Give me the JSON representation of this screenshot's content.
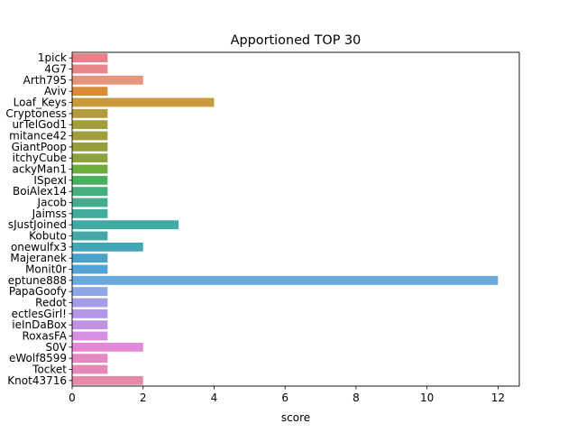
{
  "chart_data": {
    "type": "bar",
    "orientation": "horizontal",
    "title": "Apportioned TOP 30",
    "xlabel": "score",
    "ylabel": "",
    "xlim": [
      0,
      12.6
    ],
    "xticks": [
      0,
      2,
      4,
      6,
      8,
      10,
      12
    ],
    "grid": false,
    "categories": [
      "1pick",
      "4G7",
      "Arth795",
      "Aviv",
      "Loaf_Keys",
      "Cryptoness",
      "urTelGod1",
      "mitance42",
      "GiantPoop",
      "itchyCube",
      "ackyMan1",
      "ISpexI",
      "BoiAlex14",
      "Jacob",
      "Jaimss",
      "sJustJoined",
      "Kobuto",
      "onewulfx3",
      "Majeranek",
      "Monit0r",
      "eptune888",
      "PapaGoofy",
      "Redot",
      "ectlesGirl!",
      "ieInDaBox",
      "RoxasFA",
      "S0V",
      "eWolf8599",
      "Tocket",
      "Knot43716"
    ],
    "values": [
      1,
      1,
      2,
      1,
      4,
      1,
      1,
      1,
      1,
      1,
      1,
      1,
      1,
      1,
      1,
      3,
      1,
      2,
      1,
      1,
      12,
      1,
      1,
      1,
      1,
      1,
      2,
      1,
      1,
      2
    ],
    "colors": [
      "#e8808a",
      "#e8868c",
      "#e4967c",
      "#d98c3a",
      "#c99a3c",
      "#b49c3c",
      "#a39e3c",
      "#a09e3c",
      "#989e3c",
      "#8ea43c",
      "#6cae3c",
      "#4aaf5e",
      "#45ae7c",
      "#44ad90",
      "#42ac9c",
      "#42aaa4",
      "#42a8a8",
      "#43a6b4",
      "#49a2c8",
      "#55a2d6",
      "#6aa8de",
      "#8ea6e6",
      "#a49ee8",
      "#b396e8",
      "#c092e6",
      "#d48ee2",
      "#e488d8",
      "#e48ac4",
      "#e48ab6",
      "#e48aa8"
    ]
  }
}
